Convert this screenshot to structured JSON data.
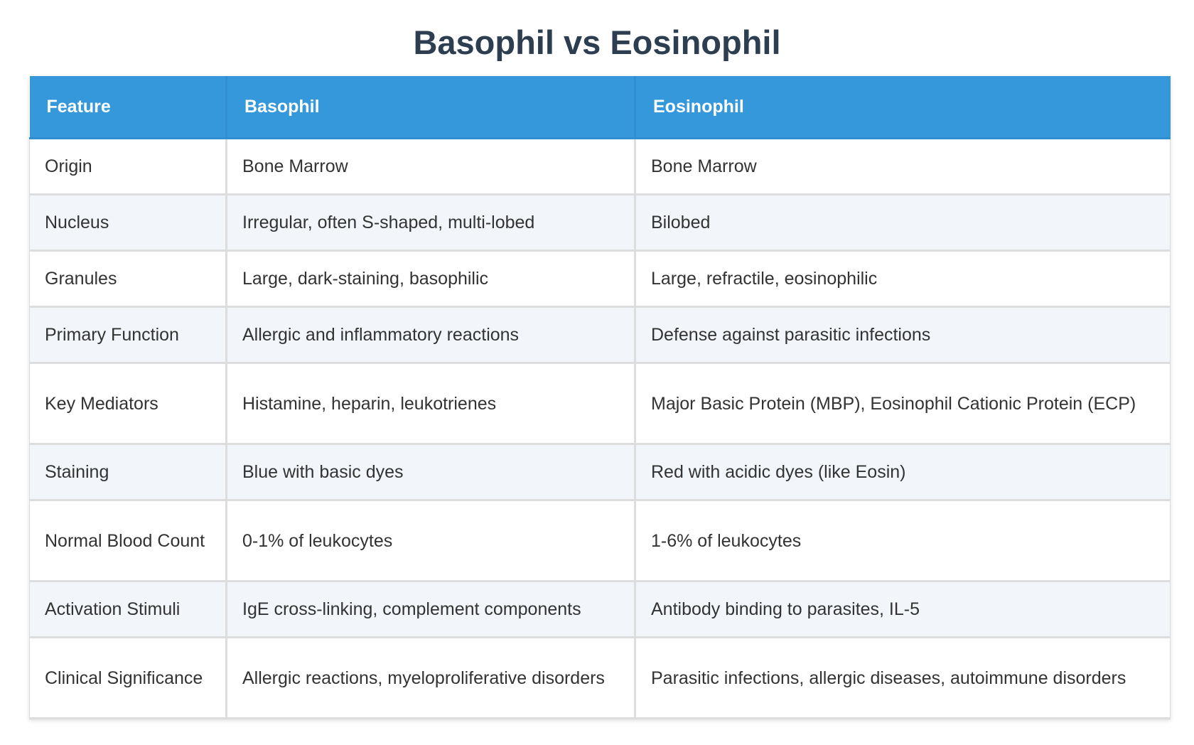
{
  "title": "Basophil vs Eosinophil",
  "table": {
    "headers": [
      "Feature",
      "Basophil",
      "Eosinophil"
    ],
    "rows": [
      {
        "feature": "Origin",
        "basophil": "Bone Marrow",
        "eosinophil": "Bone Marrow"
      },
      {
        "feature": "Nucleus",
        "basophil": "Irregular, often S-shaped, multi-lobed",
        "eosinophil": "Bilobed"
      },
      {
        "feature": "Granules",
        "basophil": "Large, dark-staining, basophilic",
        "eosinophil": "Large, refractile, eosinophilic"
      },
      {
        "feature": "Primary Function",
        "basophil": "Allergic and inflammatory reactions",
        "eosinophil": "Defense against parasitic infections"
      },
      {
        "feature": "Key Mediators",
        "basophil": "Histamine, heparin, leukotrienes",
        "eosinophil": "Major Basic Protein (MBP), Eosinophil Cationic Protein (ECP)"
      },
      {
        "feature": "Staining",
        "basophil": "Blue with basic dyes",
        "eosinophil": "Red with acidic dyes (like Eosin)"
      },
      {
        "feature": "Normal Blood Count",
        "basophil": "0-1% of leukocytes",
        "eosinophil": "1-6% of leukocytes"
      },
      {
        "feature": "Activation Stimuli",
        "basophil": "IgE cross-linking, complement components",
        "eosinophil": "Antibody binding to parasites, IL-5"
      },
      {
        "feature": "Clinical Significance",
        "basophil": "Allergic reactions, myeloproliferative disorders",
        "eosinophil": "Parasitic infections, allergic diseases, autoimmune disorders"
      }
    ]
  },
  "colors": {
    "title": "#2c3e50",
    "header_bg": "#3498db",
    "row_alt_bg": "#f2f5f9",
    "border": "#dddddd"
  }
}
